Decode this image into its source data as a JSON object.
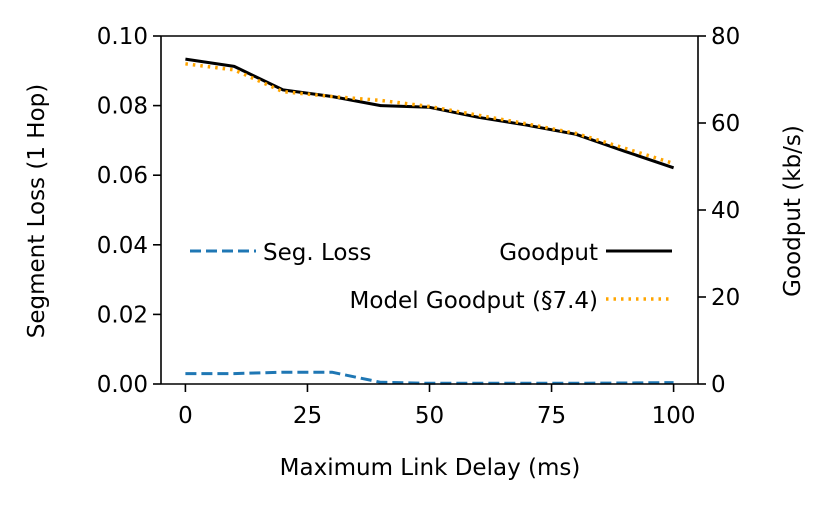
{
  "chart_data": {
    "type": "line",
    "xlabel": "Maximum Link Delay (ms)",
    "ylabel_left": "Segment Loss (1 Hop)",
    "ylabel_right": "Goodput (kb/s)",
    "xlim": [
      -5,
      105
    ],
    "ylim_left": [
      0,
      0.1
    ],
    "ylim_right": [
      0,
      80
    ],
    "x_ticks": [
      0,
      25,
      50,
      75,
      100
    ],
    "y_left_ticks": [
      "0.00",
      "0.02",
      "0.04",
      "0.06",
      "0.08",
      "0.10"
    ],
    "y_right_ticks": [
      "0",
      "20",
      "40",
      "60",
      "80"
    ],
    "grid": false,
    "legend_placement": "center",
    "series": [
      {
        "name": "Seg. Loss",
        "axis": "left",
        "color": "#1f77b4",
        "style": "dashed",
        "x": [
          0,
          10,
          20,
          30,
          40,
          50,
          60,
          70,
          80,
          90,
          100
        ],
        "values": [
          0.003,
          0.003,
          0.0034,
          0.0034,
          0.0005,
          0.0002,
          0.0002,
          0.0002,
          0.0002,
          0.0003,
          0.0004
        ]
      },
      {
        "name": "Goodput",
        "axis": "right",
        "color": "#000000",
        "style": "solid",
        "x": [
          0,
          10,
          20,
          30,
          40,
          50,
          60,
          70,
          80,
          90,
          100
        ],
        "values": [
          74.7,
          73.0,
          67.6,
          66.1,
          64.0,
          63.6,
          61.3,
          59.5,
          57.4,
          53.5,
          49.7
        ]
      },
      {
        "name": "Model Goodput (§7.4)",
        "axis": "right",
        "color": "#ffa500",
        "style": "dotted",
        "x": [
          0,
          10,
          20,
          30,
          40,
          50,
          60,
          70,
          80,
          90,
          100
        ],
        "values": [
          73.6,
          72.2,
          67.2,
          66.1,
          65.2,
          63.8,
          61.8,
          59.8,
          57.6,
          54.2,
          50.7
        ]
      }
    ]
  }
}
